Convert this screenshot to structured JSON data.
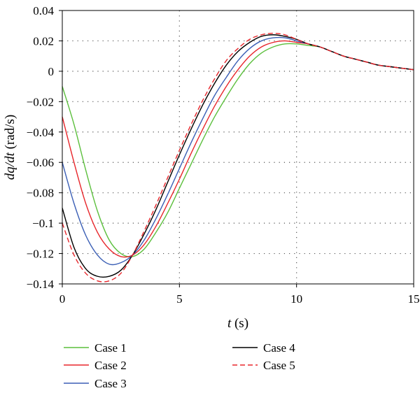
{
  "chart_data": {
    "type": "line",
    "xlabel": "t (s)",
    "ylabel": "dq/dt (rad/s)",
    "xlabel_italic": "t",
    "xlabel_rest": " (s)",
    "ylabel_italic": "dq/dt",
    "ylabel_rest": " (rad/s)",
    "xlim": [
      0,
      15
    ],
    "ylim": [
      -0.14,
      0.04
    ],
    "xticks": [
      0,
      5,
      10,
      15
    ],
    "xtick_labels": [
      "0",
      "5",
      "10",
      "15"
    ],
    "yticks": [
      -0.14,
      -0.12,
      -0.1,
      -0.08,
      -0.06,
      -0.04,
      -0.02,
      0,
      0.02,
      0.04
    ],
    "ytick_labels": [
      "−0.14",
      "−0.12",
      "−0.1",
      "−0.08",
      "−0.06",
      "−0.04",
      "−0.02",
      "0",
      "0.02",
      "0.04"
    ],
    "grid": "dotted",
    "legend_position": "bottom",
    "series": [
      {
        "name": "Case 1",
        "color": "#5bbf3c",
        "dash": "solid",
        "x": [
          0,
          0.5,
          1,
          1.5,
          2,
          2.5,
          3,
          3.5,
          4,
          4.5,
          5,
          5.5,
          6,
          6.5,
          7,
          7.5,
          8,
          8.5,
          9,
          9.5,
          10,
          10.5,
          11,
          11.5,
          12,
          12.5,
          13,
          13.5,
          14,
          14.5,
          15
        ],
        "y": [
          -0.01,
          -0.035,
          -0.065,
          -0.092,
          -0.111,
          -0.12,
          -0.122,
          -0.117,
          -0.106,
          -0.093,
          -0.077,
          -0.061,
          -0.045,
          -0.03,
          -0.017,
          -0.005,
          0.005,
          0.012,
          0.016,
          0.018,
          0.018,
          0.017,
          0.016,
          0.013,
          0.01,
          0.008,
          0.006,
          0.004,
          0.003,
          0.002,
          0.001
        ]
      },
      {
        "name": "Case 2",
        "color": "#e8262b",
        "dash": "solid",
        "x": [
          0,
          0.5,
          1,
          1.5,
          2,
          2.5,
          3,
          3.5,
          4,
          4.5,
          5,
          5.5,
          6,
          6.5,
          7,
          7.5,
          8,
          8.5,
          9,
          9.5,
          10,
          10.5,
          11,
          11.5,
          12,
          12.5,
          13,
          13.5,
          14,
          14.5,
          15
        ],
        "y": [
          -0.03,
          -0.06,
          -0.087,
          -0.106,
          -0.117,
          -0.122,
          -0.121,
          -0.114,
          -0.102,
          -0.087,
          -0.071,
          -0.054,
          -0.038,
          -0.023,
          -0.01,
          0.001,
          0.01,
          0.016,
          0.019,
          0.02,
          0.019,
          0.018,
          0.016,
          0.013,
          0.01,
          0.008,
          0.006,
          0.004,
          0.003,
          0.002,
          0.001
        ]
      },
      {
        "name": "Case 3",
        "color": "#3b5fb5",
        "dash": "solid",
        "x": [
          0,
          0.5,
          1,
          1.5,
          2,
          2.5,
          3,
          3.5,
          4,
          4.5,
          5,
          5.5,
          6,
          6.5,
          7,
          7.5,
          8,
          8.5,
          9,
          9.5,
          10,
          10.5,
          11,
          11.5,
          12,
          12.5,
          13,
          13.5,
          14,
          14.5,
          15
        ],
        "y": [
          -0.06,
          -0.087,
          -0.108,
          -0.121,
          -0.127,
          -0.126,
          -0.121,
          -0.111,
          -0.097,
          -0.081,
          -0.064,
          -0.047,
          -0.031,
          -0.016,
          -0.004,
          0.007,
          0.015,
          0.02,
          0.022,
          0.022,
          0.02,
          0.018,
          0.016,
          0.013,
          0.01,
          0.008,
          0.006,
          0.004,
          0.003,
          0.002,
          0.001
        ]
      },
      {
        "name": "Case 4",
        "color": "#000000",
        "dash": "solid",
        "x": [
          0,
          0.5,
          1,
          1.5,
          2,
          2.5,
          3,
          3.5,
          4,
          4.5,
          5,
          5.5,
          6,
          6.5,
          7,
          7.5,
          8,
          8.5,
          9,
          9.5,
          10,
          10.5,
          11,
          11.5,
          12,
          12.5,
          13,
          13.5,
          14,
          14.5,
          15
        ],
        "y": [
          -0.09,
          -0.116,
          -0.13,
          -0.135,
          -0.135,
          -0.131,
          -0.121,
          -0.107,
          -0.091,
          -0.073,
          -0.055,
          -0.038,
          -0.022,
          -0.008,
          0.004,
          0.013,
          0.019,
          0.023,
          0.024,
          0.023,
          0.021,
          0.018,
          0.016,
          0.013,
          0.01,
          0.008,
          0.006,
          0.004,
          0.003,
          0.002,
          0.001
        ]
      },
      {
        "name": "Case 5",
        "color": "#e8262b",
        "dash": "dashed",
        "x": [
          0,
          0.5,
          1,
          1.5,
          2,
          2.5,
          3,
          3.5,
          4,
          4.5,
          5,
          5.5,
          6,
          6.5,
          7,
          7.5,
          8,
          8.5,
          9,
          9.5,
          10,
          10.5,
          11,
          11.5,
          12,
          12.5,
          13,
          13.5,
          14,
          14.5,
          15
        ],
        "y": [
          -0.1,
          -0.121,
          -0.133,
          -0.138,
          -0.138,
          -0.133,
          -0.121,
          -0.105,
          -0.088,
          -0.07,
          -0.052,
          -0.035,
          -0.019,
          -0.005,
          0.007,
          0.015,
          0.021,
          0.024,
          0.025,
          0.024,
          0.021,
          0.018,
          0.016,
          0.013,
          0.01,
          0.008,
          0.006,
          0.004,
          0.003,
          0.002,
          0.001
        ]
      }
    ]
  }
}
